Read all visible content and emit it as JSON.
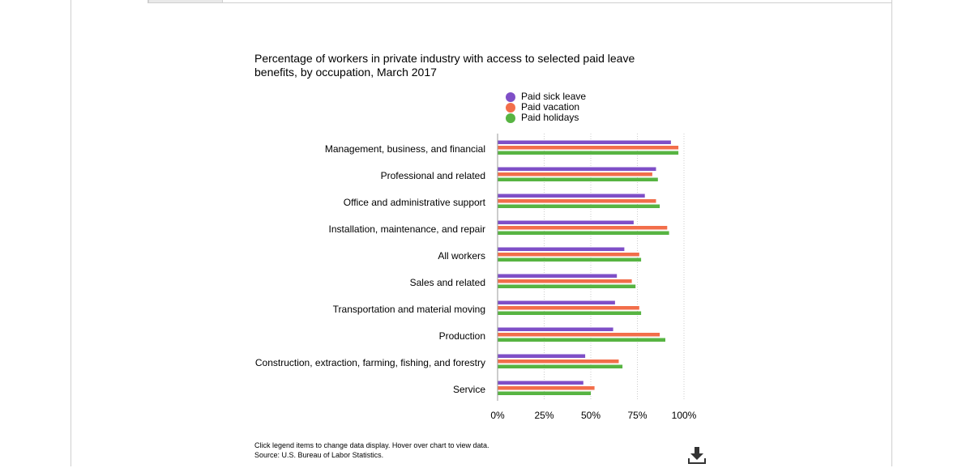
{
  "colors": {
    "sick": "#7f4fc7",
    "vacation": "#f26e4a",
    "holidays": "#57b442",
    "grid": "#cccccc",
    "axis": "#999999"
  },
  "chart_data": {
    "type": "bar",
    "orientation": "horizontal",
    "title": "Percentage of workers in private industry with access to selected paid leave benefits, by occupation, March 2017",
    "categories": [
      "Management, business, and financial",
      "Professional and related",
      "Office and administrative support",
      "Installation, maintenance, and repair",
      "All workers",
      "Sales and related",
      "Transportation and material moving",
      "Production",
      "Construction, extraction, farming, fishing, and forestry",
      "Service"
    ],
    "series": [
      {
        "name": "Paid sick leave",
        "color_key": "sick",
        "values": [
          93,
          85,
          79,
          73,
          68,
          64,
          63,
          62,
          47,
          46
        ]
      },
      {
        "name": "Paid vacation",
        "color_key": "vacation",
        "values": [
          97,
          83,
          85,
          91,
          76,
          72,
          76,
          87,
          65,
          52
        ]
      },
      {
        "name": "Paid holidays",
        "color_key": "holidays",
        "values": [
          97,
          86,
          87,
          92,
          77,
          74,
          77,
          90,
          67,
          50
        ]
      }
    ],
    "xlim": [
      0,
      100
    ],
    "xticks": [
      0,
      25,
      50,
      75,
      100
    ],
    "xtick_labels": [
      "0%",
      "25%",
      "50%",
      "75%",
      "100%"
    ],
    "legend_position": "top",
    "grid": true
  },
  "footer": {
    "note": "Click legend items to change data display. Hover over chart to view data.",
    "source": "Source: U.S. Bureau of Labor Statistics."
  },
  "icons": {
    "download": "download-icon"
  }
}
